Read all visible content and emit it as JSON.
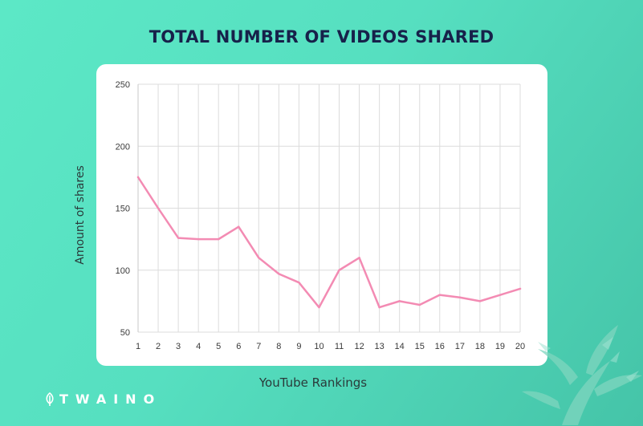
{
  "chart_data": {
    "type": "line",
    "title": "TOTAL NUMBER OF VIDEOS SHARED",
    "xlabel": "YouTube Rankings",
    "ylabel": "Amount of shares",
    "x": [
      1,
      2,
      3,
      4,
      5,
      6,
      7,
      8,
      9,
      10,
      11,
      12,
      13,
      14,
      15,
      16,
      17,
      18,
      19,
      20
    ],
    "series": [
      {
        "values": [
          175,
          150,
          126,
          125,
          125,
          135,
          110,
          97,
          90,
          70,
          100,
          110,
          70,
          75,
          72,
          80,
          78,
          75,
          80,
          85
        ]
      }
    ],
    "ylim": [
      50,
      250
    ],
    "yticks": [
      50,
      100,
      150,
      200,
      250
    ],
    "grid": "vertical-and-horizontal",
    "colors": {
      "line": "#f38bb3",
      "grid": "#dcdcdc",
      "axis_text": "#3a3a3a"
    }
  },
  "brand": {
    "logo_text": "TWAINO",
    "logo_icon": "leaf-icon"
  }
}
